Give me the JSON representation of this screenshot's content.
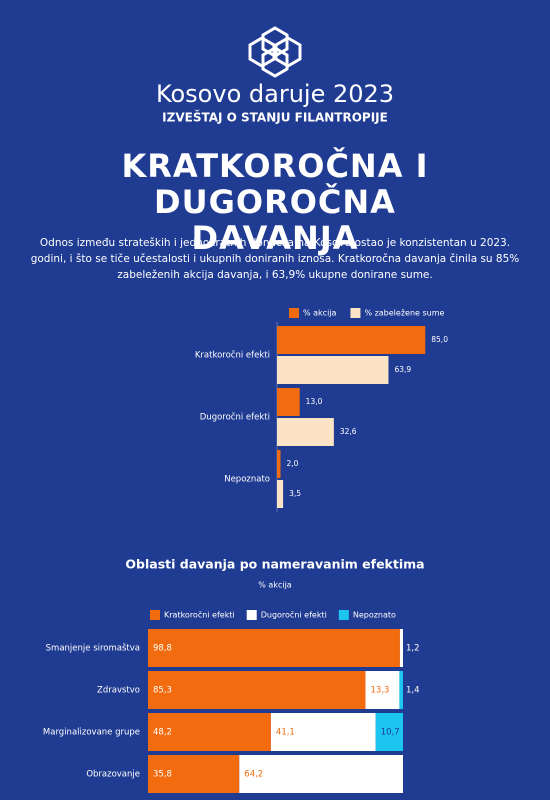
{
  "header": {
    "title": "Kosovo daruje 2023",
    "subtitle": "IZVEŠTAJ O STANJU FILANTROPIJE"
  },
  "section": {
    "title": "KRATKOROČNA I DUGOROČNA DAVANJA",
    "text": "Odnos između strateških i jednokratnih donacija na Kosovu ostao je konzistentan u 2023. godini, i što se tiče učestalosti i ukupnih doniranih iznosa. Kratkoročna davanja činila su 85% zabeleženih akcija davanja, i 63,9% ukupne donirane sume."
  },
  "chart_data": [
    {
      "type": "grouped_hbar",
      "categories": [
        "Kratkoročni efekti",
        "Dugoročni efekti",
        "Nepoznato"
      ],
      "series": [
        {
          "name": "% akcija",
          "color": "#f26b0f",
          "values": [
            85.0,
            13.0,
            2.0
          ],
          "value_labels": [
            "85,0",
            "13,0",
            "2,0"
          ]
        },
        {
          "name": "% zabeležene sume",
          "color": "#fde3c5",
          "values": [
            63.9,
            32.6,
            3.5
          ],
          "value_labels": [
            "63,9",
            "32,6",
            "3,5"
          ]
        }
      ],
      "xlim": [
        0,
        90
      ]
    },
    {
      "type": "stacked_hbar",
      "title": "Oblasti davanja po nameravanim efektima",
      "subtitle": "% akcija",
      "categories": [
        "Smanjenje siromaštva",
        "Zdravstvo",
        "Marginalizovane grupe",
        "Obrazovanje"
      ],
      "series": [
        {
          "name": "Kratkoročni efekti",
          "color": "#f26b0f",
          "values": [
            98.8,
            85.3,
            48.2,
            35.8
          ],
          "value_labels": [
            "98,8",
            "85,3",
            "48,2",
            "35,8"
          ]
        },
        {
          "name": "Dugoročni efekti",
          "color": "#ffffff",
          "values": [
            1.2,
            13.3,
            41.1,
            64.2
          ],
          "value_labels": [
            "1,2",
            "13,3",
            "41,1",
            "64,2"
          ]
        },
        {
          "name": "Nepoznato",
          "color": "#1cc4f0",
          "values": [
            null,
            1.4,
            10.7,
            null
          ],
          "value_labels": [
            null,
            "1,4",
            "10,7",
            null
          ]
        }
      ],
      "xlim": [
        0,
        100
      ]
    }
  ]
}
